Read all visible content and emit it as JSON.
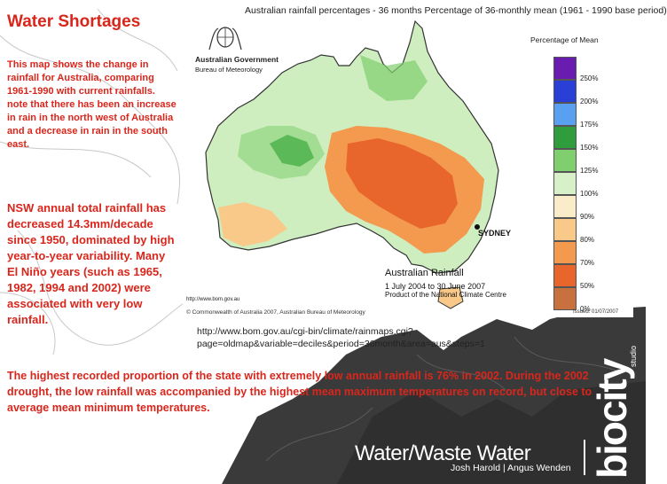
{
  "title": "Water Shortages",
  "intro": "This map shows the change in rainfall for Australia, comparing 1961-1990 with current rainfalls. note that there has been an increase in rain in the north west of Australia and a decrease in rain in the south east.",
  "nsw_note": "NSW annual total rainfall has decreased 14.3mm/decade since 1950, dominated by high year-to-year variability. Many El Niño years (such as 1965, 1982, 1994 and 2002) were associated with very low rainfall.",
  "source_url": "http://www.bom.gov.au/cgi-bin/climate/rainmaps.cgi?page=oldmap&variable=deciles&period=36month&area=aus&steps=1",
  "bottom_text": "The highest recorded proportion of the state with extremely low annual rainfall is 76% in 2002. During the 2002 drought, the low rainfall was accompanied by the highest mean maximum temperatures on record, but close to average mean minimum temperatures.",
  "map": {
    "title": "Australian rainfall percentages - 36 months Percentage of 36-monthly mean (1961 - 1990 base period)",
    "gov_line1": "Australian Government",
    "gov_line2": "Bureau of Meteorology",
    "legend_title": "Percentage of Mean",
    "legend": [
      {
        "label": "250%",
        "color": "#6a1bb0"
      },
      {
        "label": "200%",
        "color": "#2a3fd6"
      },
      {
        "label": "175%",
        "color": "#5aa0f0"
      },
      {
        "label": "150%",
        "color": "#2f9d3c"
      },
      {
        "label": "125%",
        "color": "#7fcf6e"
      },
      {
        "label": "100%",
        "color": "#d7f0c8"
      },
      {
        "label": "90%",
        "color": "#fbecc9"
      },
      {
        "label": "80%",
        "color": "#f9c98a"
      },
      {
        "label": "70%",
        "color": "#f39a4e"
      },
      {
        "label": "50%",
        "color": "#e8662b"
      },
      {
        "label": "0%",
        "color": "#c8703e"
      }
    ],
    "city_label": "SYDNEY",
    "inset_title": "Australian Rainfall",
    "inset_period": "1 July 2004 to 30 June 2007",
    "inset_product": "Product of the National Climate Centre",
    "bom_url": "http://www.bom.gov.au",
    "copyright": "© Commonwealth of Australia 2007, Australian Bureau of Meteorology",
    "issued": "Issued: 01/07/2007"
  },
  "footer": {
    "brand": "Water/Waste Water",
    "authors": "Josh Harold | Angus Wenden",
    "logo_text": "biocity",
    "logo_small": "studio"
  },
  "colors": {
    "accent_red": "#d9261c",
    "footer_dark": "#3a3a3a"
  }
}
